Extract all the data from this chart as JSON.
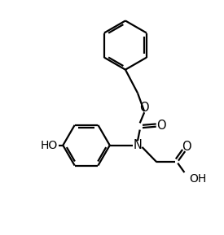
{
  "bg_color": "#ffffff",
  "line_color": "#000000",
  "line_width": 1.6,
  "figsize": [
    2.75,
    2.89
  ],
  "dpi": 100,
  "xlim": [
    0,
    10
  ],
  "ylim": [
    0,
    10.5
  ]
}
